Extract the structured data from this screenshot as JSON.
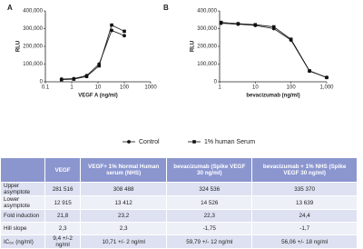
{
  "chart_data": [
    {
      "type": "line",
      "panel_label": "A",
      "x_label": "VEGF A (ng/ml)",
      "y_label": "RLU",
      "xscale": "log",
      "xlim": [
        0.1,
        1000
      ],
      "xticks": [
        0.1,
        1,
        10,
        100,
        1000
      ],
      "ylim": [
        0,
        400000
      ],
      "yticks": [
        0,
        {
          "value": 100000,
          "label": "100,000"
        },
        {
          "value": 200000,
          "label": "200,000"
        },
        {
          "value": 300000,
          "label": "300,000"
        },
        {
          "value": 400000,
          "label": "400,000"
        }
      ],
      "series": [
        {
          "name": "Control",
          "color": "#111111",
          "marker": "circle",
          "x": [
            0.41,
            1.2,
            3.7,
            11,
            33,
            100
          ],
          "values": [
            15000,
            18000,
            35000,
            100000,
            290000,
            260000
          ]
        },
        {
          "name": "1% human Serum",
          "color": "#111111",
          "marker": "square",
          "x": [
            0.41,
            1.2,
            3.7,
            11,
            33,
            100
          ],
          "values": [
            12000,
            15000,
            30000,
            90000,
            320000,
            285000
          ]
        }
      ]
    },
    {
      "type": "line",
      "panel_label": "B",
      "x_label": "bevacizumab (ng/ml)",
      "y_label": "RLU",
      "xscale": "log",
      "xlim": [
        1,
        1000
      ],
      "xticks": [
        1,
        10,
        100,
        {
          "value": 1000,
          "label": "1,000"
        }
      ],
      "ylim": [
        0,
        400000
      ],
      "yticks": [
        0,
        {
          "value": 100000,
          "label": "100,000"
        },
        {
          "value": 200000,
          "label": "200,000"
        },
        {
          "value": 300000,
          "label": "300,000"
        },
        {
          "value": 400000,
          "label": "400,000"
        }
      ],
      "series": [
        {
          "name": "Control",
          "color": "#111111",
          "marker": "circle",
          "x": [
            1.1,
            3.3,
            10,
            33,
            100,
            330,
            1000
          ],
          "values": [
            330000,
            325000,
            318000,
            300000,
            235000,
            60000,
            25000
          ]
        },
        {
          "name": "1% human Serum",
          "color": "#111111",
          "marker": "square",
          "x": [
            1.1,
            3.3,
            10,
            33,
            100,
            330,
            1000
          ],
          "values": [
            335000,
            328000,
            322000,
            310000,
            240000,
            62000,
            24000
          ]
        }
      ]
    }
  ],
  "table": {
    "header": [
      "VEGF",
      "VEGF+ 1% Normal Human serum (NHS)",
      "bevacizumab (Spike VEGF 30 ng/ml)",
      "bevacizumab + 1% NHS (Spike VEGF 30 ng/ml)"
    ],
    "rows": [
      [
        "Upper asymptote",
        "281 516",
        "308 488",
        "324 536",
        "335 370"
      ],
      [
        "Lower asymptote",
        "12 915",
        "13 412",
        "14 526",
        "13 639"
      ],
      [
        "Fold induction",
        "21,8",
        "23,2",
        "22,3",
        "24,4"
      ],
      [
        "Hill slope",
        "2,3",
        "2,3",
        "-1,75",
        "-1,7"
      ],
      [
        "IC₅₀ (ng/ml)",
        "9,4 +/-2 ng/ml",
        "10,71 +/- 2 ng/ml",
        "59,79 +/- 12 ng/ml",
        "56,06 +/- 18 ng/ml"
      ]
    ]
  }
}
